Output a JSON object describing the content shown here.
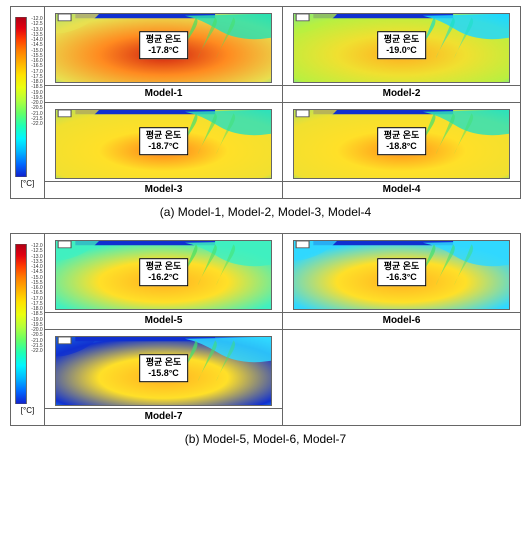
{
  "colorbar": {
    "unit_label": "[°C]",
    "min_value": -22.0,
    "max_value": -12.0,
    "tick_step": 0.5,
    "ticks": [
      "-12.0",
      "-12.5",
      "-13.0",
      "-13.5",
      "-14.0",
      "-14.5",
      "-15.0",
      "-15.5",
      "-16.0",
      "-16.5",
      "-17.0",
      "-17.5",
      "-18.0",
      "-18.5",
      "-19.0",
      "-19.5",
      "-20.0",
      "-20.5",
      "-21.0",
      "-21.5",
      "-22.0"
    ],
    "gradient_colors": [
      "#b00015",
      "#e20010",
      "#ff3d00",
      "#ff7d00",
      "#ffb300",
      "#ffe100",
      "#eaff0f",
      "#b3ff3c",
      "#66ff66",
      "#1fffb3",
      "#00f5ff",
      "#00b8ff",
      "#0068ff",
      "#101fcc"
    ],
    "bar_border": "#555555"
  },
  "overlay_title": "평균 온도",
  "figureA": {
    "caption": "(a) Model-1, Model-2, Model-3, Model-4",
    "models": [
      {
        "id": "Model-1",
        "avg_temp": "-17.8°C",
        "palette": {
          "top_bar": "#1030d0",
          "upper_right": "#2de0b0",
          "upper_left": "#e8e050",
          "mid": "#ff8b20",
          "plume": "#46e060",
          "bottom": "#d02010"
        }
      },
      {
        "id": "Model-2",
        "avg_temp": "-19.0°C",
        "palette": {
          "top_bar": "#1030d0",
          "upper_right": "#1fd8ff",
          "upper_left": "#b8f040",
          "mid": "#f0e030",
          "plume": "#18e0c0",
          "accent": "#40d060",
          "bottom": "#ffad20"
        }
      },
      {
        "id": "Model-3",
        "avg_temp": "-18.7°C",
        "palette": {
          "top_bar": "#1030d0",
          "upper_right": "#30e0b8",
          "upper_left": "#f0e030",
          "mid": "#ffe028",
          "plume": "#40e070",
          "bottom": "#ff8018"
        }
      },
      {
        "id": "Model-4",
        "avg_temp": "-18.8°C",
        "palette": {
          "top_bar": "#1030d0",
          "upper_right": "#30e0b8",
          "upper_left": "#f0e030",
          "mid": "#ffe028",
          "plume": "#40e070",
          "bottom": "#ff9018"
        }
      }
    ]
  },
  "figureB": {
    "caption": "(b) Model-5, Model-6, Model-7",
    "models": [
      {
        "id": "Model-5",
        "avg_temp": "-16.2°C",
        "palette": {
          "top_bar": "#1030d0",
          "upper_right": "#40f0c0",
          "upper_left": "#40f0c0",
          "mid": "#ffe028",
          "plume": "#46e060",
          "bottom": "#ffb020"
        }
      },
      {
        "id": "Model-6",
        "avg_temp": "-16.3°C",
        "palette": {
          "top_bar": "#1030d0",
          "upper_right": "#30d8ff",
          "upper_left": "#30d8ff",
          "mid": "#ffe028",
          "plume": "#40e070",
          "bottom": "#ffb020"
        }
      },
      {
        "id": "Model-7",
        "avg_temp": "-15.8°C",
        "palette": {
          "top_bar": "#1030d0",
          "upper_right": "#30d8ff",
          "upper_left": "#1030d0",
          "mid": "#ffe028",
          "plume": "#40e070",
          "bottom": "#ffb020"
        }
      }
    ]
  }
}
